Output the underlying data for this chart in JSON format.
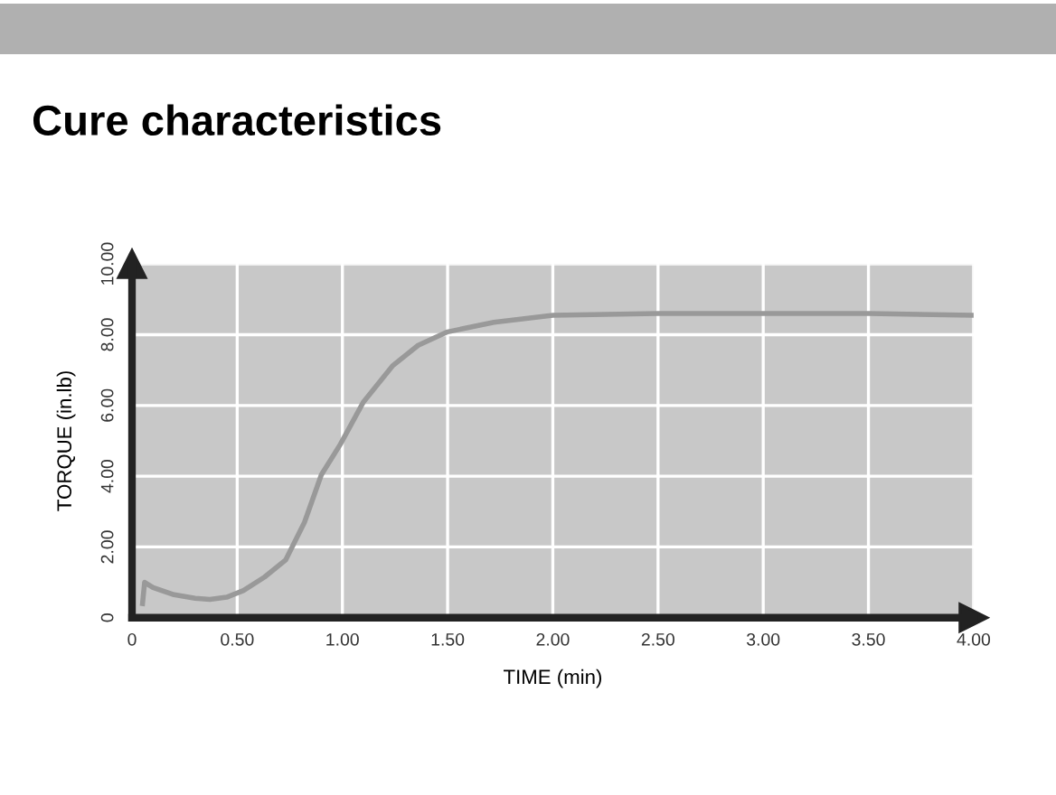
{
  "chart_data": {
    "type": "line",
    "title": "Cure characteristics",
    "xlabel": "TIME (min)",
    "ylabel": "TORQUE (in.lb)",
    "xlim": [
      0,
      4
    ],
    "ylim": [
      0,
      10
    ],
    "xticks": [
      0,
      {
        "value": 0.5,
        "label": "0.50"
      },
      {
        "value": 1,
        "label": "1.00"
      },
      {
        "value": 1.5,
        "label": "1.50"
      },
      {
        "value": 2,
        "label": "2.00"
      },
      {
        "value": 2.5,
        "label": "2.50"
      },
      {
        "value": 3,
        "label": "3.00"
      },
      {
        "value": 3.5,
        "label": "3.50"
      },
      {
        "value": 4,
        "label": "4.00"
      }
    ],
    "yticks": [
      0,
      {
        "value": 2,
        "label": "2.00"
      },
      {
        "value": 4,
        "label": "4.00"
      },
      {
        "value": 6,
        "label": "6.00"
      },
      {
        "value": 8,
        "label": "8.00"
      },
      {
        "value": 10,
        "label": "10.00"
      }
    ],
    "grid": true,
    "marker": "none",
    "line_style": "solid",
    "series": [
      {
        "color": "#999999",
        "x": [
          0.05,
          0.06,
          0.1,
          0.2,
          0.3,
          0.37,
          0.45,
          0.53,
          0.63,
          0.73,
          0.82,
          0.9,
          0.99,
          1.1,
          1.24,
          1.36,
          1.5,
          1.72,
          2.0,
          2.5,
          3.0,
          3.5,
          4.0
        ],
        "values": [
          0.4,
          1.0,
          0.85,
          0.65,
          0.55,
          0.52,
          0.58,
          0.77,
          1.15,
          1.63,
          2.7,
          4.04,
          4.9,
          6.1,
          7.13,
          7.7,
          8.08,
          8.35,
          8.55,
          8.6,
          8.6,
          8.6,
          8.55
        ]
      }
    ]
  }
}
